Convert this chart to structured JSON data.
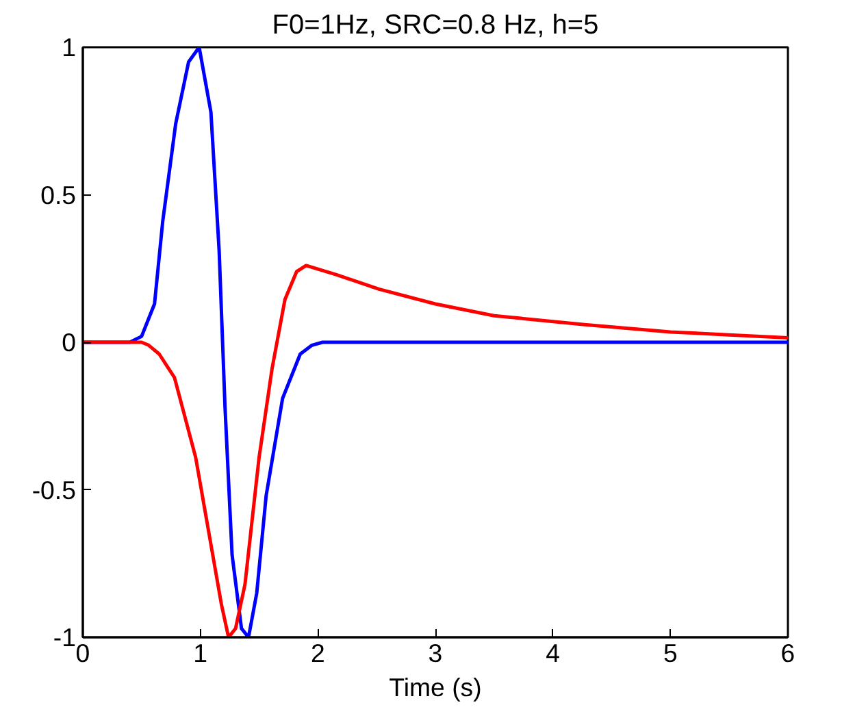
{
  "chart_data": {
    "type": "line",
    "title": "F0=1Hz, SRC=0.8 Hz, h=5",
    "xlabel": "Time (s)",
    "xlim": [
      0,
      6
    ],
    "ylim": [
      -1,
      1
    ],
    "xticks": [
      0,
      1,
      2,
      3,
      4,
      5,
      6
    ],
    "yticks": [
      -1,
      -0.5,
      0,
      0.5,
      1
    ],
    "grid": false,
    "marker": "none",
    "line_style": "solid",
    "series": [
      {
        "color": "#0000ff",
        "x": [
          0,
          0.4,
          0.5,
          0.61,
          0.68,
          0.79,
          0.9,
          0.99,
          1.09,
          1.16,
          1.21,
          1.27,
          1.35,
          1.41,
          1.48,
          1.56,
          1.7,
          1.85,
          1.95,
          2.04,
          6
        ],
        "values": [
          0,
          0,
          0.02,
          0.13,
          0.41,
          0.74,
          0.95,
          1,
          0.78,
          0.31,
          -0.22,
          -0.72,
          -0.97,
          -1,
          -0.85,
          -0.52,
          -0.19,
          -0.04,
          -0.01,
          0,
          0
        ]
      },
      {
        "color": "#ff0000",
        "x": [
          0,
          0.5,
          0.56,
          0.65,
          0.78,
          0.96,
          1.07,
          1.18,
          1.24,
          1.3,
          1.38,
          1.5,
          1.61,
          1.72,
          1.82,
          1.9,
          2.15,
          2.52,
          3,
          3.5,
          4.27,
          5,
          5.5,
          6
        ],
        "values": [
          0,
          0,
          -0.01,
          -0.04,
          -0.12,
          -0.39,
          -0.64,
          -0.89,
          -1,
          -0.97,
          -0.82,
          -0.39,
          -0.09,
          0.145,
          0.24,
          0.26,
          0.23,
          0.18,
          0.13,
          0.09,
          0.06,
          0.035,
          0.025,
          0.015
        ]
      }
    ]
  }
}
